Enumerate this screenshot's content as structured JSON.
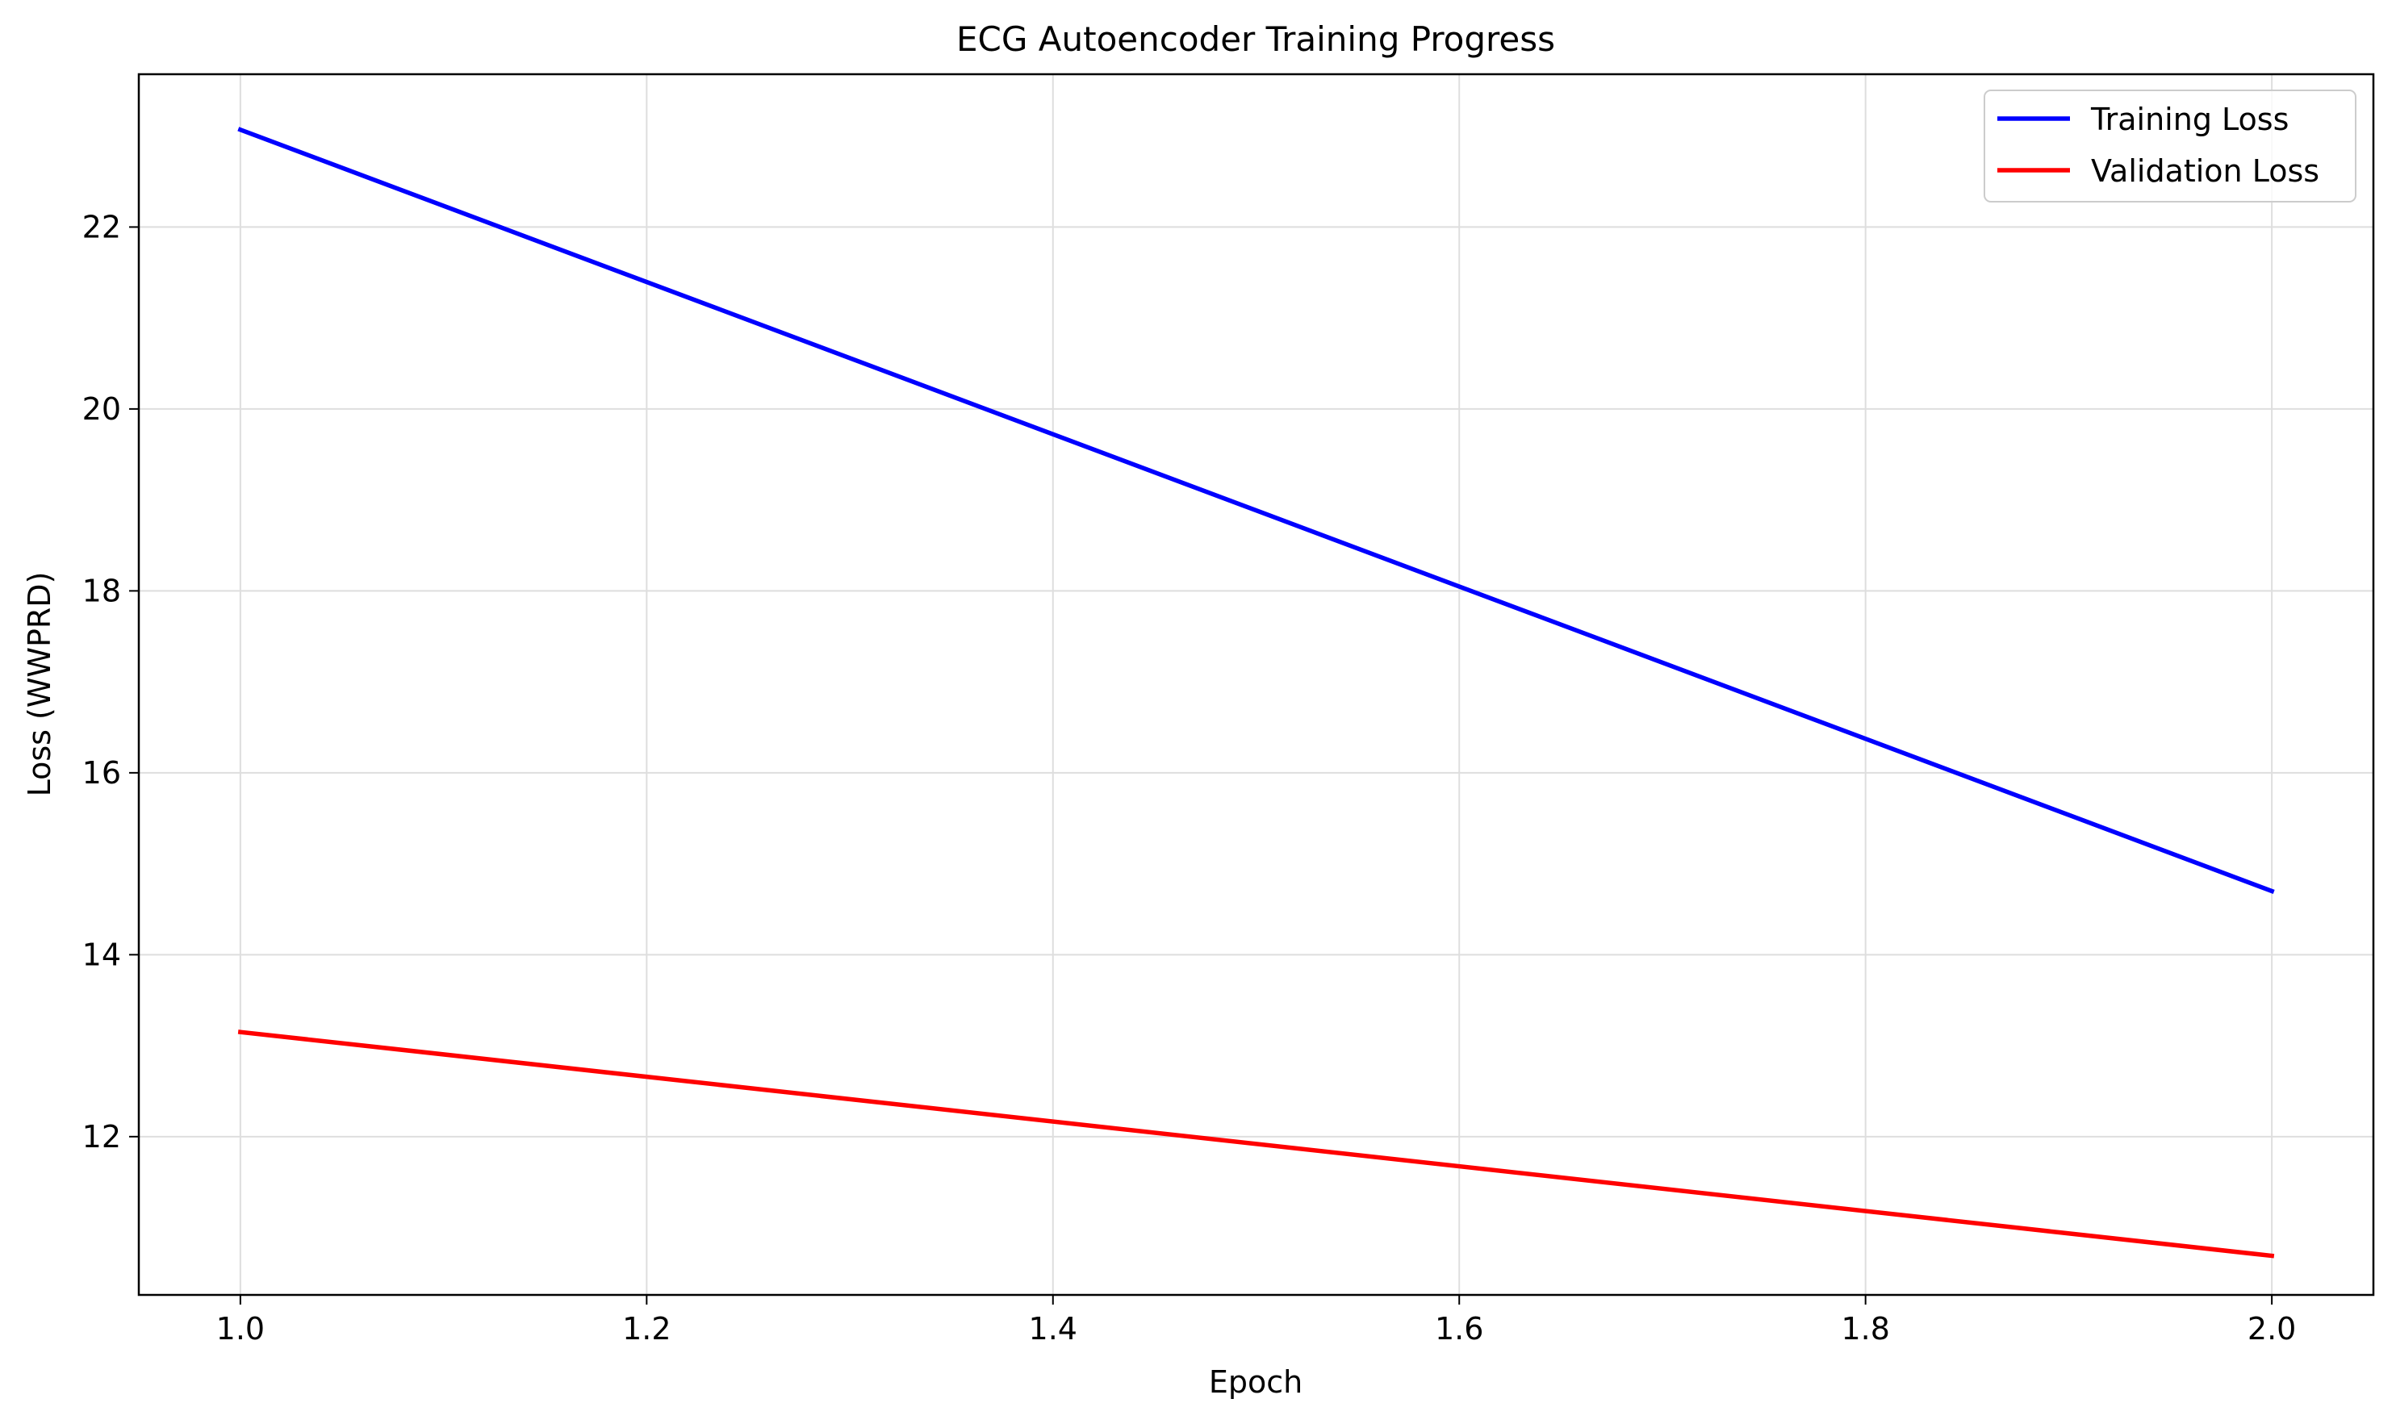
{
  "chart_data": {
    "type": "line",
    "title": "ECG Autoencoder Training Progress",
    "xlabel": "Epoch",
    "ylabel": "Loss (WWPRD)",
    "x": [
      1.0,
      2.0
    ],
    "series": [
      {
        "name": "Training Loss",
        "color": "#0000ff",
        "values": [
          23.07,
          14.7
        ]
      },
      {
        "name": "Validation Loss",
        "color": "#ff0000",
        "values": [
          13.15,
          10.69
        ]
      }
    ],
    "xlim": [
      0.95,
      2.05
    ],
    "ylim": [
      10.26,
      23.68
    ],
    "xticks": [
      1.0,
      1.2,
      1.4,
      1.6,
      1.8,
      2.0
    ],
    "xtick_labels": [
      "1.0",
      "1.2",
      "1.4",
      "1.6",
      "1.8",
      "2.0"
    ],
    "yticks": [
      12,
      14,
      16,
      18,
      20,
      22
    ],
    "ytick_labels": [
      "12",
      "14",
      "16",
      "18",
      "20",
      "22"
    ],
    "grid": true,
    "legend_position": "top-right"
  }
}
